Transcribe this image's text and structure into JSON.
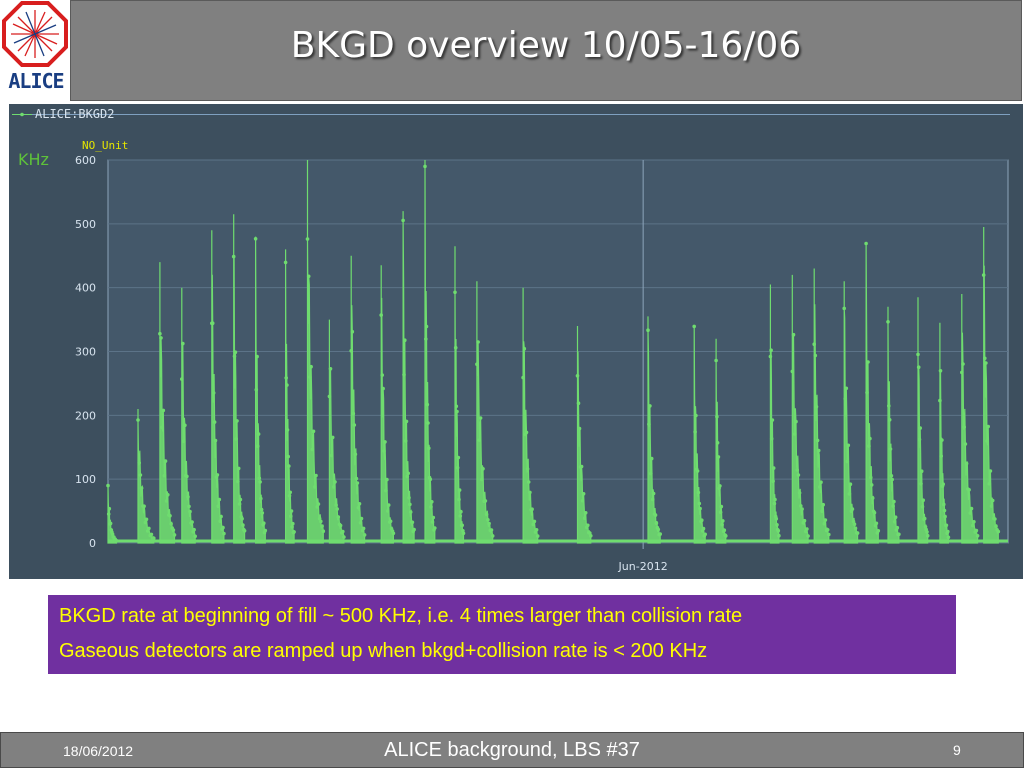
{
  "slide": {
    "title": "BKGD overview 10/05-16/06",
    "logo_text": "ALICE",
    "note_line1": "BKGD rate at beginning of fill ~ 500 KHz, i.e. 4 times larger than collision rate",
    "note_line2": "Gaseous detectors are ramped up when bkgd+collision rate is < 200 KHz",
    "footer_date": "18/06/2012",
    "footer_center": "ALICE background, LBS #37",
    "page_number": "9"
  },
  "colors": {
    "series": "#6fdc6f",
    "plot_background": "#3d4f5e",
    "note_background": "#7030a0",
    "note_text": "#ffff00",
    "header_background": "#808080"
  },
  "chart_data": {
    "type": "line",
    "series_label": "ALICE:BKGD2",
    "unit_label": "KHz",
    "axis_unit": "NO_Unit",
    "xlabel": "",
    "ylabel": "",
    "x_tick_label": "Jun-2012",
    "x_range": [
      "2012-05-10",
      "2012-06-16"
    ],
    "x_tick_date": "2012-06-01",
    "ylim": [
      0,
      600
    ],
    "y_ticks": [
      0,
      100,
      200,
      300,
      400,
      500,
      600
    ],
    "grid": true,
    "fills": [
      {
        "start": "2012-05-10",
        "peak": 90
      },
      {
        "start": "2012-05-11",
        "peak": 210
      },
      {
        "start": "2012-05-12",
        "peak": 440
      },
      {
        "start": "2012-05-13",
        "peak": 400
      },
      {
        "start": "2012-05-14",
        "peak": 490
      },
      {
        "start": "2012-05-15",
        "peak": 515
      },
      {
        "start": "2012-05-16",
        "peak": 480
      },
      {
        "start": "2012-05-17",
        "peak": 460
      },
      {
        "start": "2012-05-18",
        "peak": 600
      },
      {
        "start": "2012-05-19",
        "peak": 350
      },
      {
        "start": "2012-05-20",
        "peak": 450
      },
      {
        "start": "2012-05-21",
        "peak": 435
      },
      {
        "start": "2012-05-22",
        "peak": 520
      },
      {
        "start": "2012-05-23",
        "peak": 600
      },
      {
        "start": "2012-05-24",
        "peak": 465
      },
      {
        "start": "2012-05-25",
        "peak": 410
      },
      {
        "start": "2012-05-27",
        "peak": 400
      },
      {
        "start": "2012-05-29",
        "peak": 340
      },
      {
        "start": "2012-06-01",
        "peak": 355
      },
      {
        "start": "2012-06-03",
        "peak": 340
      },
      {
        "start": "2012-06-04",
        "peak": 320
      },
      {
        "start": "2012-06-06",
        "peak": 405
      },
      {
        "start": "2012-06-07",
        "peak": 420
      },
      {
        "start": "2012-06-08",
        "peak": 430
      },
      {
        "start": "2012-06-09",
        "peak": 410
      },
      {
        "start": "2012-06-10",
        "peak": 470
      },
      {
        "start": "2012-06-11",
        "peak": 370
      },
      {
        "start": "2012-06-12",
        "peak": 385
      },
      {
        "start": "2012-06-13",
        "peak": 345
      },
      {
        "start": "2012-06-14",
        "peak": 390
      },
      {
        "start": "2012-06-15",
        "peak": 495
      }
    ]
  }
}
